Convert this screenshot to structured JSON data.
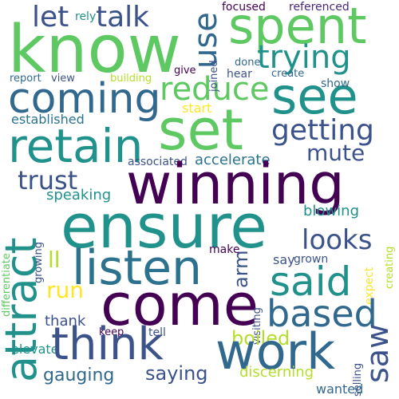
{
  "words": [
    {
      "text": "know",
      "color": "#5ec962",
      "rotate": false
    },
    {
      "text": "spent",
      "color": "#5ec962",
      "rotate": false
    },
    {
      "text": "let",
      "color": "#3b528b",
      "rotate": false
    },
    {
      "text": "talk",
      "color": "#3b528b",
      "rotate": false
    },
    {
      "text": "rely",
      "color": "#21918c",
      "rotate": false
    },
    {
      "text": "focused",
      "color": "#440154",
      "rotate": false
    },
    {
      "text": "referenced",
      "color": "#482878",
      "rotate": false
    },
    {
      "text": "use",
      "color": "#31688e",
      "rotate": true
    },
    {
      "text": "trying",
      "color": "#21918c",
      "rotate": false
    },
    {
      "text": "coming",
      "color": "#31688e",
      "rotate": false
    },
    {
      "text": "reduce",
      "color": "#5ec962",
      "rotate": false
    },
    {
      "text": "see",
      "color": "#21918c",
      "rotate": false
    },
    {
      "text": "joined",
      "color": "#3b528b",
      "rotate": true
    },
    {
      "text": "done",
      "color": "#31688e",
      "rotate": false
    },
    {
      "text": "give",
      "color": "#440154",
      "rotate": false
    },
    {
      "text": "hear",
      "color": "#3b528b",
      "rotate": false
    },
    {
      "text": "create",
      "color": "#31688e",
      "rotate": false
    },
    {
      "text": "report",
      "color": "#31688e",
      "rotate": false
    },
    {
      "text": "view",
      "color": "#3b528b",
      "rotate": false
    },
    {
      "text": "building",
      "color": "#b5de2b",
      "rotate": false
    },
    {
      "text": "show",
      "color": "#31688e",
      "rotate": false
    },
    {
      "text": "start",
      "color": "#fde725",
      "rotate": false
    },
    {
      "text": "established",
      "color": "#2c728e",
      "rotate": false
    },
    {
      "text": "set",
      "color": "#5ec962",
      "rotate": false
    },
    {
      "text": "retain",
      "color": "#21918c",
      "rotate": false
    },
    {
      "text": "getting",
      "color": "#3b528b",
      "rotate": false
    },
    {
      "text": "mute",
      "color": "#3b528b",
      "rotate": false
    },
    {
      "text": "associated",
      "color": "#3b528b",
      "rotate": false
    },
    {
      "text": "accelerate",
      "color": "#2c728e",
      "rotate": false
    },
    {
      "text": "trust",
      "color": "#3b528b",
      "rotate": false
    },
    {
      "text": "winning",
      "color": "#440154",
      "rotate": false
    },
    {
      "text": "speaking",
      "color": "#21918c",
      "rotate": false
    },
    {
      "text": "blowing",
      "color": "#21918c",
      "rotate": false
    },
    {
      "text": "attract",
      "color": "#21918c",
      "rotate": true
    },
    {
      "text": "ensure",
      "color": "#21918c",
      "rotate": false
    },
    {
      "text": "differentiate",
      "color": "#5ec962",
      "rotate": true
    },
    {
      "text": "growing",
      "color": "#3b528b",
      "rotate": true
    },
    {
      "text": "ll",
      "color": "#b5de2b",
      "rotate": false
    },
    {
      "text": "listen",
      "color": "#2c728e",
      "rotate": false
    },
    {
      "text": "looks",
      "color": "#3b528b",
      "rotate": false
    },
    {
      "text": "creating",
      "color": "#b5de2b",
      "rotate": true
    },
    {
      "text": "arm",
      "color": "#3b528b",
      "rotate": true
    },
    {
      "text": "make",
      "color": "#440154",
      "rotate": false
    },
    {
      "text": "say",
      "color": "#3b528b",
      "rotate": false
    },
    {
      "text": "grown",
      "color": "#3b528b",
      "rotate": false
    },
    {
      "text": "run",
      "color": "#fde725",
      "rotate": false
    },
    {
      "text": "said",
      "color": "#21918c",
      "rotate": false
    },
    {
      "text": "expect",
      "color": "#fde725",
      "rotate": true
    },
    {
      "text": "come",
      "color": "#440154",
      "rotate": false
    },
    {
      "text": "visiting",
      "color": "#3b528b",
      "rotate": true
    },
    {
      "text": "based",
      "color": "#31688e",
      "rotate": false
    },
    {
      "text": "thank",
      "color": "#3b528b",
      "rotate": false
    },
    {
      "text": "keep",
      "color": "#440154",
      "rotate": false
    },
    {
      "text": "tell",
      "color": "#3b528b",
      "rotate": false
    },
    {
      "text": "boiled",
      "color": "#b5de2b",
      "rotate": false
    },
    {
      "text": "elevate",
      "color": "#21918c",
      "rotate": false
    },
    {
      "text": "think",
      "color": "#3b528b",
      "rotate": false
    },
    {
      "text": "work",
      "color": "#31688e",
      "rotate": false
    },
    {
      "text": "saw",
      "color": "#3b528b",
      "rotate": true
    },
    {
      "text": "selling",
      "color": "#3b528b",
      "rotate": true
    },
    {
      "text": "gauging",
      "color": "#31688e",
      "rotate": false
    },
    {
      "text": "saying",
      "color": "#3b528b",
      "rotate": false
    },
    {
      "text": "discerning",
      "color": "#b5de2b",
      "rotate": false
    },
    {
      "text": "wanted",
      "color": "#31688e",
      "rotate": false
    }
  ]
}
